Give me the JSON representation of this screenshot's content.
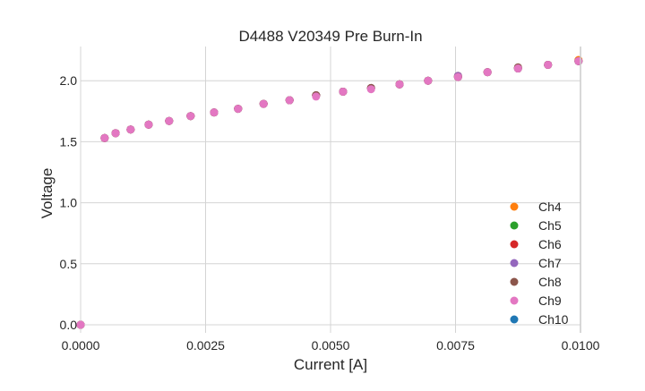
{
  "chart_data": {
    "type": "scatter",
    "title": "D4488 V20349 Pre Burn-In",
    "xlabel": "Current [A]",
    "ylabel": "Voltage",
    "xlim": [
      0,
      0.01
    ],
    "ylim": [
      -0.066,
      2.28
    ],
    "xticks": [
      0,
      0.0025,
      0.005,
      0.0075,
      0.01
    ],
    "xtick_labels": [
      "0.0000",
      "0.0025",
      "0.0050",
      "0.0075",
      "0.0100"
    ],
    "yticks": [
      0,
      0.5,
      1.0,
      1.5,
      2.0
    ],
    "ytick_labels": [
      "0.0",
      "0.5",
      "1.0",
      "1.5",
      "2.0"
    ],
    "grid": true,
    "legend_placement": "lower-right",
    "x": [
      0,
      0.00048,
      0.0007,
      0.001,
      0.00136,
      0.00177,
      0.0022,
      0.00267,
      0.00315,
      0.00366,
      0.00418,
      0.00471,
      0.00525,
      0.00581,
      0.00638,
      0.00695,
      0.00755,
      0.00814,
      0.00875,
      0.00935,
      0.00996
    ],
    "series": [
      {
        "name": "Ch4",
        "color": "#ff7f0e",
        "values": [
          0,
          1.53,
          1.57,
          1.6,
          1.64,
          1.67,
          1.71,
          1.74,
          1.77,
          1.81,
          1.84,
          1.88,
          1.91,
          1.94,
          1.97,
          2.0,
          2.04,
          2.07,
          2.1,
          2.13,
          2.17
        ]
      },
      {
        "name": "Ch5",
        "color": "#2ca02c",
        "values": [
          0,
          1.53,
          1.57,
          1.6,
          1.64,
          1.67,
          1.71,
          1.74,
          1.77,
          1.81,
          1.84,
          1.88,
          1.91,
          1.94,
          1.97,
          2.0,
          2.03,
          2.07,
          2.1,
          2.13,
          2.16
        ]
      },
      {
        "name": "Ch6",
        "color": "#d62728",
        "values": [
          0,
          1.53,
          1.57,
          1.6,
          1.64,
          1.67,
          1.71,
          1.74,
          1.77,
          1.81,
          1.84,
          1.88,
          1.91,
          1.94,
          1.97,
          2.0,
          2.03,
          2.07,
          2.1,
          2.13,
          2.16
        ]
      },
      {
        "name": "Ch7",
        "color": "#9467bd",
        "values": [
          0,
          1.53,
          1.57,
          1.6,
          1.64,
          1.67,
          1.71,
          1.74,
          1.77,
          1.81,
          1.84,
          1.88,
          1.91,
          1.94,
          1.97,
          2.0,
          2.04,
          2.07,
          2.1,
          2.13,
          2.16
        ]
      },
      {
        "name": "Ch8",
        "color": "#8c564b",
        "values": [
          0,
          1.53,
          1.57,
          1.6,
          1.64,
          1.67,
          1.71,
          1.74,
          1.77,
          1.81,
          1.84,
          1.88,
          1.91,
          1.94,
          1.97,
          2.0,
          2.03,
          2.07,
          2.11,
          2.13,
          2.16
        ]
      },
      {
        "name": "Ch9",
        "color": "#e377c2",
        "values": [
          0,
          1.53,
          1.57,
          1.6,
          1.64,
          1.67,
          1.71,
          1.74,
          1.77,
          1.81,
          1.84,
          1.87,
          1.91,
          1.93,
          1.97,
          2.0,
          2.03,
          2.07,
          2.1,
          2.13,
          2.16
        ]
      },
      {
        "name": "Ch10",
        "color": "#1f77b4",
        "values": [
          0,
          1.53,
          1.57,
          1.6,
          1.64,
          1.67,
          1.71,
          1.74,
          1.77,
          1.81,
          1.84,
          1.88,
          1.91,
          1.94,
          1.97,
          2.0,
          2.03,
          2.07,
          2.1,
          2.13,
          2.16
        ]
      }
    ]
  }
}
